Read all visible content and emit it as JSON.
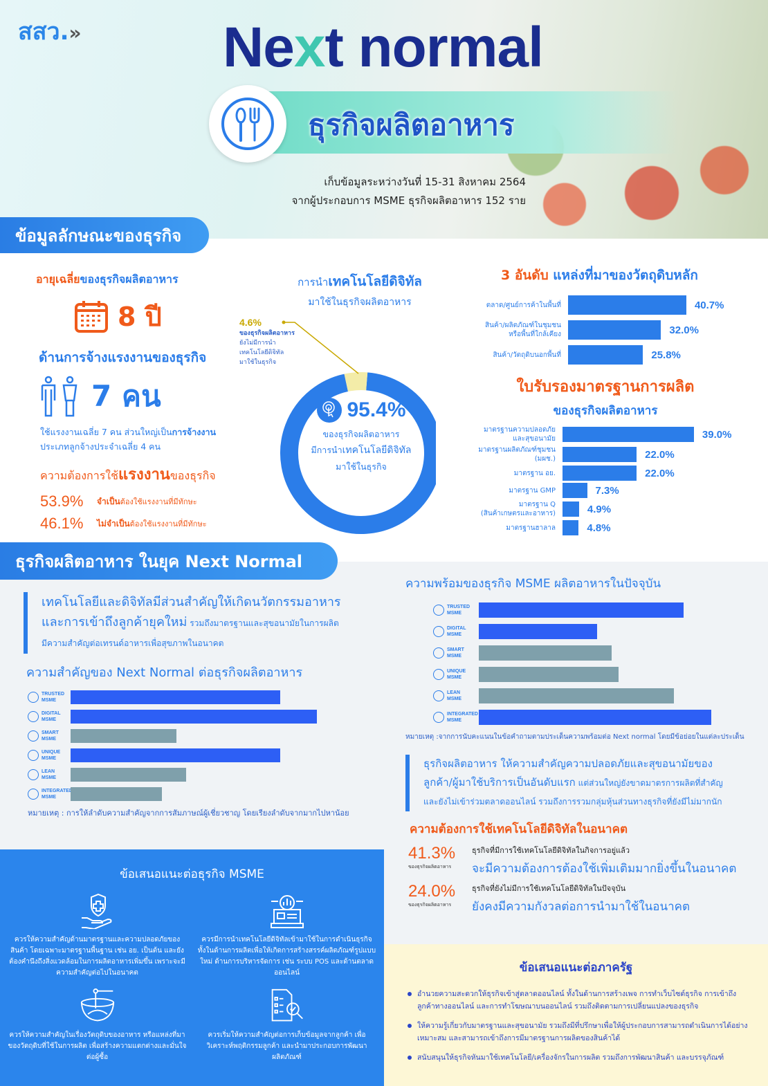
{
  "header": {
    "logo": "สสว.",
    "title_pre": "Ne",
    "title_x": "x",
    "title_post": "t normal",
    "subtitle": "ธุรกิจผลิตอาหาร",
    "info_line1": "เก็บข้อมูลระหว่างวันที่ 15-31 สิงหาคม 2564",
    "info_line2": "จากผู้ประกอบการ MSME ธุรกิจผลิตอาหาร 152 ราย"
  },
  "section1": {
    "ribbon": "ข้อมูลลักษณะของธุรกิจ",
    "age": {
      "title_em": "อายุเฉลี่ย",
      "title_rest": "ของธุรกิจผลิตอาหาร",
      "value": "8 ปี"
    },
    "employment": {
      "title": "ด้านการจ้างแรงงานของธุรกิจ",
      "value": "7 คน",
      "desc1_a": "ใช้แรงงานเฉลี่ย 7 คน ส่วนใหญ่เป็น",
      "desc1_b": "การจ้างงาน",
      "desc2": "ประเภทลูกจ้างประจำเฉลี่ย 4 คน"
    },
    "labor_need": {
      "title_a": "ความต้องการใช้",
      "title_b": "แรงงาน",
      "title_c": "ของธุรกิจ",
      "rows": [
        {
          "pct": "53.9%",
          "em": "จำเป็น",
          "rest": "ต้องใช้แรงงานที่มีทักษะ"
        },
        {
          "pct": "46.1%",
          "em": "ไม่จำเป็น",
          "rest": "ต้องใช้แรงงานที่มีทักษะ"
        }
      ]
    },
    "digital": {
      "title_a": "การนำ",
      "title_b": "เทคโนโลยีดิจิทัล",
      "title_c": "มาใช้ในธุรกิจผลิตอาหาร",
      "minor_pct": "4.6%",
      "minor_l1": "ของธุรกิจผลิตอาหาร",
      "minor_l2": "ยังไม่มีการนำ",
      "minor_l3": "เทคโนโลยีดิจิทัล",
      "minor_l4": "มาใช้ในธุรกิจ",
      "major_pct": "95.4%",
      "major_l1": "ของธุรกิจผลิตอาหาร",
      "major_l2a": "มีการนำ",
      "major_l2b": "เทคโนโลยีดิจิทัล",
      "major_l3": "มาใช้ในธุรกิจ",
      "colors": {
        "adopted": "#2b7de9",
        "not_adopted": "#f3eca8"
      }
    },
    "raw_materials": {
      "title_em": "3 อันดับ",
      "title_rest": "แหล่งที่มาของวัตถุดิบหลัก"
    },
    "certs": {
      "title": "ใบรับรองมาตรฐานการผลิต",
      "subtitle": "ของธุรกิจผลิตอาหาร"
    }
  },
  "chart_data": [
    {
      "type": "pie",
      "variant": "donut",
      "categories": [
        "มีการนำเทคโนโลยีดิจิทัลมาใช้",
        "ยังไม่มีการนำเทคโนโลยีดิจิทัลมาใช้"
      ],
      "values": [
        95.4,
        4.6
      ]
    },
    {
      "type": "bar",
      "orientation": "horizontal",
      "categories": [
        [
          "ตลาด/ศูนย์การค้าในพื้นที่"
        ],
        [
          "สินค้า/ผลิตภัณฑ์ในชุมชน",
          "หรือพื้นที่ใกล้เคียง"
        ],
        [
          "สินค้า/วัตถุดิบนอกพื้นที่"
        ]
      ],
      "values": [
        40.7,
        32.0,
        25.8
      ],
      "labels": [
        "40.7%",
        "32.0%",
        "25.8%"
      ],
      "color": "#2b7de9"
    },
    {
      "type": "bar",
      "orientation": "horizontal",
      "categories": [
        [
          "มาตรฐานความปลอดภัย",
          "และสุขอนามัย"
        ],
        [
          "มาตรฐานผลิตภัณฑ์ชุมชน",
          "(มผช.)"
        ],
        [
          "มาตรฐาน อย."
        ],
        [
          "มาตรฐาน GMP"
        ],
        [
          "มาตรฐาน Q",
          "(สินค้าเกษตรและอาหาร)"
        ],
        [
          "มาตรฐานฮาลาล"
        ]
      ],
      "values": [
        39.0,
        22.0,
        22.0,
        7.3,
        4.9,
        4.8
      ],
      "labels": [
        "39.0%",
        "22.0%",
        "22.0%",
        "7.3%",
        "4.9%",
        "4.8%"
      ],
      "color": "#2b7de9"
    },
    {
      "type": "bar",
      "orientation": "horizontal",
      "title": "ความสำคัญของ Next Normal ต่อธุรกิจผลิตอาหาร",
      "categories": [
        [
          "TRUSTED",
          "MSME"
        ],
        [
          "DIGITAL",
          "MSME"
        ],
        [
          "SMART",
          "MSME"
        ],
        [
          "UNIQUE",
          "MSME"
        ],
        [
          "LEAN",
          "MSME"
        ],
        [
          "INTEGRATED",
          "MSME"
        ]
      ],
      "values": [
        0.85,
        1.0,
        0.43,
        0.85,
        0.47,
        0.37
      ],
      "highlight": [
        true,
        true,
        false,
        true,
        false,
        false
      ],
      "note": "หมายเหตุ : การให้ลำดับความสำคัญจากการสัมภาษณ์ผู้เชี่ยวชาญ โดยเรียงลำดับจากมากไปหาน้อย",
      "colors": {
        "highlight": "#2d5ff5",
        "other": "#7fa0ab"
      }
    },
    {
      "type": "bar",
      "orientation": "horizontal",
      "title": "ความพร้อมของธุรกิจ MSME ผลิตอาหารในปัจจุบัน",
      "categories": [
        [
          "TRUSTED",
          "MSME"
        ],
        [
          "DIGITAL",
          "MSME"
        ],
        [
          "SMART",
          "MSME"
        ],
        [
          "UNIQUE",
          "MSME"
        ],
        [
          "LEAN",
          "MSME"
        ],
        [
          "INTEGRATED",
          "MSME"
        ]
      ],
      "values": [
        0.88,
        0.51,
        0.57,
        0.6,
        0.84,
        1.0
      ],
      "highlight": [
        true,
        true,
        false,
        false,
        false,
        true
      ],
      "note": "หมายเหตุ :จากการนับคะแนนในข้อคำถามตามประเด็นความพร้อมต่อ Next normal โดยมีข้อย่อยในแต่ละประเด็น",
      "colors": {
        "highlight": "#2d5ff5",
        "other": "#7fa0ab"
      }
    }
  ],
  "section2": {
    "ribbon": "ธุรกิจผลิตอาหาร ในยุค Next Normal",
    "quote1": {
      "l1": "เทคโนโลยีและดิจิทัลมีส่วนสำคัญให้เกิดนวัตกรรมอาหาร",
      "l2a": "และการเข้าถึงลูกค้ายุคใหม่",
      "l2b": " รวมถึงมาตรฐานและสุขอนามัยในการผลิต",
      "l3": "มีความสำคัญต่อเทรนด์อาหารเพื่อสุขภาพในอนาคต"
    },
    "quote2": {
      "l1": "ธุรกิจผลิตอาหาร ให้ความสำคัญความปลอดภัยและสุขอนามัยของ",
      "l2a": "ลูกค้า/ผู้มาใช้บริการเป็นอันดับแรก",
      "l2b": " แต่ส่วนใหญ่ยังขาดมาตรการผลิตที่สำคัญ",
      "l3": "และยังไม่เข้าร่วมตลาดออนไลน์ รวมถึงการรวมกลุ่มหุ้นส่วนทางธุรกิจที่ยังมีไม่มากนัก"
    },
    "future": {
      "title": "ความต้องการใช้เทคโนโลยีดิจิทัลในอนาคต",
      "rows": [
        {
          "pct": "41.3%",
          "sub": "ของธุรกิจผลิตอาหาร",
          "l1": "ธุรกิจที่มีการใช้เทคโนโลยีดิจิทัลในกิจการอยู่แล้ว",
          "l2": "จะมีความต้องการต้องใช้เพิ่มเติมมากยิ่งขึ้นในอนาคต"
        },
        {
          "pct": "24.0%",
          "sub": "ของธุรกิจผลิตอาหาร",
          "l1": "ธุรกิจที่ยังไม่มีการใช้เทคโนโลยีดิจิทัลในปัจจุบัน",
          "l2": "ยังคงมีความกังวลต่อการนำมาใช้ในอนาคต"
        }
      ]
    }
  },
  "msme_rec": {
    "title": "ข้อเสนอแนะต่อธุรกิจ MSME",
    "items": [
      {
        "icon": "hand-shield-icon",
        "text": "ควรให้ความสำคัญด้านมาตรฐานและความปลอดภัยของสินค้า โดยเฉพาะมาตรฐานพื้นฐาน เช่น  อย. เป็นต้น และยังต้องคำนึงถึงสิ่งแวดล้อมในการผลิตอาหารเพิ่มขึ้น เพราะจะมีความสำคัญต่อไปในอนาคต"
      },
      {
        "icon": "laptop-gear-icon",
        "text": "ควรมีการนำเทคโนโลยีดิจิทัลเข้ามาใช้ในการดำเนินธุรกิจ ทั้งในด้านการผลิตเพื่อให้เกิดการสร้างสรรค์ผลิตภัณฑ์รูปแบบใหม่ ด้านการบริหารจัดการ เช่น ระบบ POS และด้านตลาดออนไลน์"
      },
      {
        "icon": "bowl-icon",
        "text": "ควรให้ความสำคัญในเรื่องวัตถุดิบของอาหาร หรือแหล่งที่มาของวัตถุดิบที่ใช้ในการผลิต เพื่อสร้างความแตกต่างและมั่นใจต่อผู้ซื้อ"
      },
      {
        "icon": "document-search-icon",
        "text": "ควรเริ่มให้ความสำคัญต่อการเก็บข้อมูลจากลูกค้า เพื่อวิเคราะห์พฤติกรรมลูกค้า และนำมาประกอบการพัฒนาผลิตภัณฑ์"
      }
    ]
  },
  "gov_rec": {
    "title": "ข้อเสนอแนะต่อภาครัฐ",
    "items": [
      "อำนวยความสะดวกให้ธุรกิจเข้าสู่ตลาดออนไลน์ ทั้งในด้านการสร้างเพจ การทำเว็บไซต์ธุรกิจ การเข้าถึงลูกค้าทางออนไลน์ และการทำโฆษณาบนออนไลน์ รวมถึงติดตามการเปลี่ยนแปลงของธุรกิจ",
      "ให้ความรู้เกี่ยวกับมาตรฐานและสุขอนามัย รวมถึงมีที่ปรึกษาเพื่อให้ผู้ประกอบการสามารถดำเนินการได้อย่างเหมาะสม และสามารถเข้าถึงการมีมาตรฐานการผลิตของสินค้าได้",
      "สนับสนุนให้ธุรกิจหันมาใช้เทคโนโลยี/เครื่องจักรในการผลิต รวมถึงการพัฒนาสินค้า และบรรจุภัณฑ์"
    ]
  }
}
